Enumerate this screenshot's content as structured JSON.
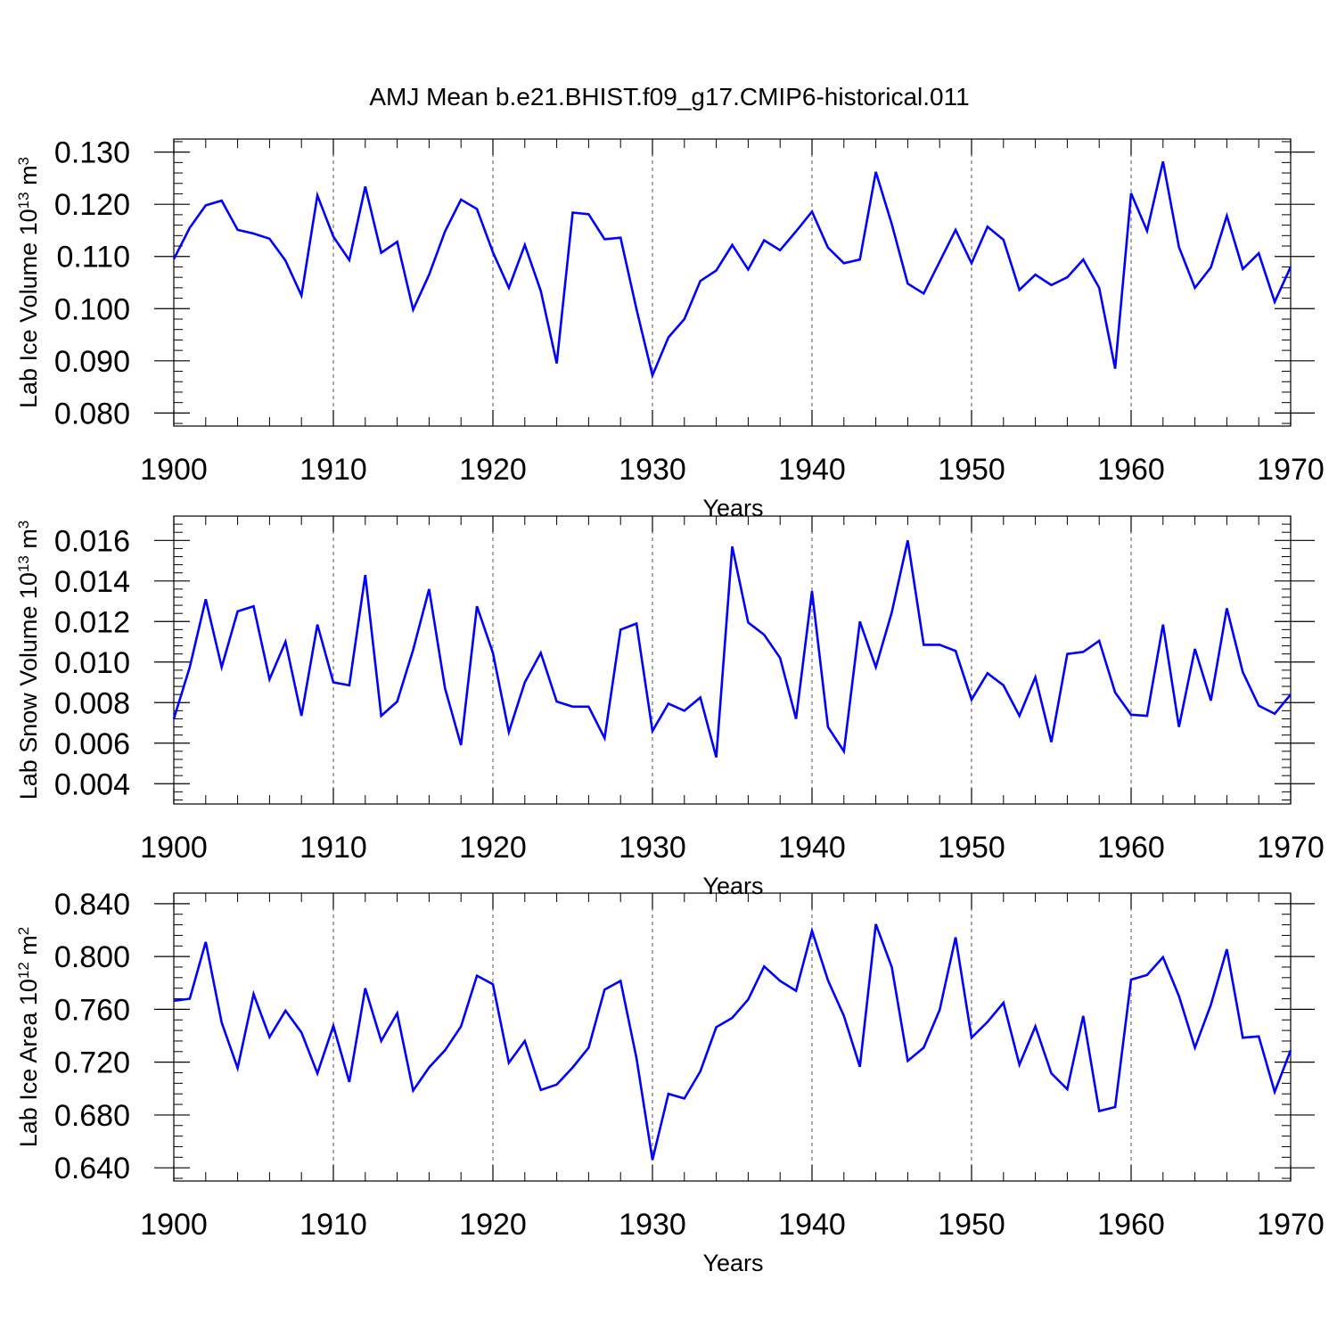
{
  "title": "AMJ Mean b.e21.BHIST.f09_g17.CMIP6-historical.011",
  "colors": {
    "line": "#0000ff",
    "axis": "#000000",
    "grid": "#555555"
  },
  "chart_data": [
    {
      "type": "line",
      "ylabel": "Lab Ice Volume 10",
      "ylabel_exp": "13",
      "ylabel_unit": " m",
      "ylabel_unit_exp": "3",
      "xlabel": "Years",
      "xlim": [
        1900,
        1970
      ],
      "ylim": [
        0.0775,
        0.1325
      ],
      "xticks": [
        1900,
        1910,
        1920,
        1930,
        1940,
        1950,
        1960,
        1970
      ],
      "xtick_labels": [
        "1900",
        "1910",
        "1920",
        "1930",
        "1940",
        "1950",
        "1960",
        "1970"
      ],
      "yticks": [
        0.08,
        0.09,
        0.1,
        0.11,
        0.12,
        0.13
      ],
      "ytick_labels": [
        "0.080",
        "0.090",
        "0.100",
        "0.110",
        "0.120",
        "0.130"
      ],
      "x_start": 1900,
      "values": [
        0.1095,
        0.1155,
        0.1198,
        0.1207,
        0.1151,
        0.1144,
        0.1134,
        0.1092,
        0.1025,
        0.1217,
        0.1138,
        0.1093,
        0.1234,
        0.1107,
        0.1128,
        0.0998,
        0.1065,
        0.1148,
        0.1209,
        0.1191,
        0.1108,
        0.104,
        0.1122,
        0.1034,
        0.0895,
        0.1184,
        0.1181,
        0.1133,
        0.1136,
        0.0999,
        0.0872,
        0.0945,
        0.098,
        0.1053,
        0.1073,
        0.1122,
        0.1075,
        0.1131,
        0.1112,
        0.1148,
        0.1186,
        0.1117,
        0.1087,
        0.1094,
        0.1262,
        0.1162,
        0.1048,
        0.1029,
        0.109,
        0.1151,
        0.1087,
        0.1157,
        0.1132,
        0.1036,
        0.1065,
        0.1045,
        0.106,
        0.1094,
        0.104,
        0.0885,
        0.1221,
        0.1149,
        0.1282,
        0.1118,
        0.104,
        0.1079,
        0.1178,
        0.1076,
        0.1106,
        0.1013,
        0.108
      ]
    },
    {
      "type": "line",
      "ylabel": "Lab Snow Volume 10",
      "ylabel_exp": "13",
      "ylabel_unit": " m",
      "ylabel_unit_exp": "3",
      "xlabel": "Years",
      "xlim": [
        1900,
        1970
      ],
      "ylim": [
        0.003,
        0.0172
      ],
      "xticks": [
        1900,
        1910,
        1920,
        1930,
        1940,
        1950,
        1960,
        1970
      ],
      "xtick_labels": [
        "1900",
        "1910",
        "1920",
        "1930",
        "1940",
        "1950",
        "1960",
        "1970"
      ],
      "yticks": [
        0.004,
        0.006,
        0.008,
        0.01,
        0.012,
        0.014,
        0.016
      ],
      "ytick_labels": [
        "0.004",
        "0.006",
        "0.008",
        "0.010",
        "0.012",
        "0.014",
        "0.016"
      ],
      "x_start": 1900,
      "values": [
        0.0072,
        0.00975,
        0.0131,
        0.00975,
        0.0125,
        0.01275,
        0.00915,
        0.011,
        0.00735,
        0.01185,
        0.009,
        0.00885,
        0.0143,
        0.00735,
        0.00805,
        0.0106,
        0.0136,
        0.0087,
        0.0059,
        0.01275,
        0.01045,
        0.00655,
        0.009,
        0.01045,
        0.00805,
        0.0078,
        0.0078,
        0.00625,
        0.0116,
        0.0119,
        0.0066,
        0.00795,
        0.0076,
        0.00825,
        0.0053,
        0.0157,
        0.01195,
        0.01135,
        0.0102,
        0.0072,
        0.0135,
        0.0068,
        0.0056,
        0.012,
        0.00975,
        0.01245,
        0.016,
        0.01085,
        0.01085,
        0.01055,
        0.00815,
        0.00945,
        0.00885,
        0.00735,
        0.00925,
        0.00605,
        0.0104,
        0.0105,
        0.01105,
        0.0085,
        0.0074,
        0.00735,
        0.01185,
        0.0068,
        0.01065,
        0.0081,
        0.01265,
        0.0095,
        0.00785,
        0.00745,
        0.0084
      ]
    },
    {
      "type": "line",
      "ylabel": "Lab Ice Area 10",
      "ylabel_exp": "12",
      "ylabel_unit": " m",
      "ylabel_unit_exp": "2",
      "xlabel": "Years",
      "xlim": [
        1900,
        1970
      ],
      "ylim": [
        0.63,
        0.848
      ],
      "xticks": [
        1900,
        1910,
        1920,
        1930,
        1940,
        1950,
        1960,
        1970
      ],
      "xtick_labels": [
        "1900",
        "1910",
        "1920",
        "1930",
        "1940",
        "1950",
        "1960",
        "1970"
      ],
      "yticks": [
        0.64,
        0.68,
        0.72,
        0.76,
        0.8,
        0.84
      ],
      "ytick_labels": [
        "0.640",
        "0.680",
        "0.720",
        "0.760",
        "0.800",
        "0.840"
      ],
      "x_start": 1900,
      "values": [
        0.7665,
        0.768,
        0.811,
        0.75,
        0.7155,
        0.7715,
        0.739,
        0.759,
        0.7425,
        0.7115,
        0.7475,
        0.705,
        0.776,
        0.736,
        0.757,
        0.6985,
        0.716,
        0.729,
        0.747,
        0.7855,
        0.779,
        0.7195,
        0.736,
        0.699,
        0.703,
        0.716,
        0.731,
        0.775,
        0.7815,
        0.723,
        0.646,
        0.696,
        0.6925,
        0.713,
        0.7465,
        0.7535,
        0.7675,
        0.7925,
        0.7815,
        0.774,
        0.8195,
        0.782,
        0.755,
        0.7165,
        0.8245,
        0.792,
        0.721,
        0.731,
        0.7595,
        0.8145,
        0.7385,
        0.7505,
        0.765,
        0.718,
        0.747,
        0.7115,
        0.6995,
        0.755,
        0.683,
        0.686,
        0.7825,
        0.786,
        0.7995,
        0.77,
        0.731,
        0.7635,
        0.8055,
        0.7385,
        0.7395,
        0.6975,
        0.729
      ]
    }
  ]
}
